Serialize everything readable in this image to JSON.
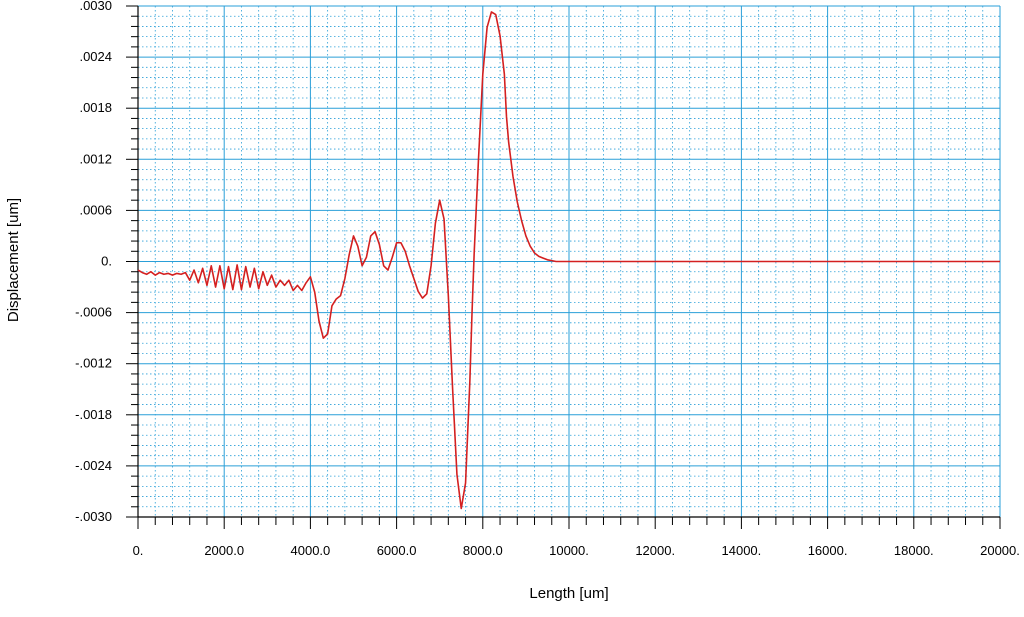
{
  "chart_data": {
    "type": "line",
    "title": "",
    "xlabel": "Length [um]",
    "ylabel": "Displacement [um]",
    "xlim": [
      0,
      20000
    ],
    "ylim": [
      -0.003,
      0.003
    ],
    "grid": true,
    "x_tick_values": [
      0,
      2000,
      4000,
      6000,
      8000,
      10000,
      12000,
      14000,
      16000,
      18000,
      20000
    ],
    "x_tick_labels": [
      "0.",
      "2000.0",
      "4000.0",
      "6000.0",
      "8000.0",
      "10000.",
      "12000.",
      "14000.",
      "16000.",
      "18000.",
      "20000."
    ],
    "y_tick_values": [
      0.003,
      0.0024,
      0.0018,
      0.0012,
      0.0006,
      0,
      -0.0006,
      -0.0012,
      -0.0018,
      -0.0024,
      -0.003
    ],
    "y_tick_labels": [
      ".0030",
      ".0024",
      ".0018",
      ".0012",
      ".0006",
      "0.",
      "-.0006",
      "-.0012",
      "-.0018",
      "-.0024",
      "-.0030"
    ],
    "colors": {
      "series": "#d42020",
      "grid_major": "#2a9fd8",
      "grid_minor": "#2a9fd8",
      "axis": "#000000"
    },
    "series": [
      {
        "x": [
          0,
          100,
          200,
          300,
          400,
          500,
          600,
          700,
          800,
          900,
          1000,
          1100,
          1200,
          1300,
          1400,
          1500,
          1600,
          1700,
          1800,
          1900,
          2000,
          2100,
          2200,
          2300,
          2400,
          2500,
          2600,
          2700,
          2800,
          2900,
          3000,
          3100,
          3200,
          3300,
          3400,
          3500,
          3600,
          3700,
          3800,
          3900,
          4000,
          4100,
          4200,
          4300,
          4400,
          4500,
          4600,
          4700,
          4800,
          4900,
          5000,
          5100,
          5200,
          5300,
          5400,
          5500,
          5600,
          5700,
          5800,
          5900,
          6000,
          6100,
          6200,
          6300,
          6400,
          6500,
          6600,
          6700,
          6800,
          6900,
          7000,
          7100,
          7200,
          7300,
          7400,
          7500,
          7600,
          7700,
          7750,
          7800,
          7900,
          8000,
          8100,
          8200,
          8300,
          8400,
          8500,
          8550,
          8600,
          8700,
          8800,
          8900,
          9000,
          9100,
          9200,
          9300,
          9400,
          9500,
          9600,
          9700,
          9800,
          9900,
          10000,
          10200,
          10500,
          11000,
          12000,
          14000,
          16000,
          18000,
          20000
        ],
        "y": [
          -0.0001,
          -0.00013,
          -0.00015,
          -0.00012,
          -0.00016,
          -0.00013,
          -0.00015,
          -0.00014,
          -0.00016,
          -0.00014,
          -0.00015,
          -0.00013,
          -0.00022,
          -0.0001,
          -0.00025,
          -8e-05,
          -0.00028,
          -5e-05,
          -0.0003,
          -5e-05,
          -0.00032,
          -6e-05,
          -0.00033,
          -4e-05,
          -0.00033,
          -6e-05,
          -0.0003,
          -8e-05,
          -0.00032,
          -0.00012,
          -0.00028,
          -0.00016,
          -0.0003,
          -0.00022,
          -0.00028,
          -0.00022,
          -0.00034,
          -0.00028,
          -0.00034,
          -0.00025,
          -0.00018,
          -0.00036,
          -0.0007,
          -0.0009,
          -0.00085,
          -0.00052,
          -0.00044,
          -0.0004,
          -0.0002,
          8e-05,
          0.0003,
          0.00018,
          -5e-05,
          5e-05,
          0.0003,
          0.00035,
          0.0002,
          -5e-05,
          -0.0001,
          5e-05,
          0.00022,
          0.00022,
          0.00012,
          -5e-05,
          -0.0002,
          -0.00035,
          -0.00043,
          -0.00038,
          -5e-05,
          0.00045,
          0.00072,
          0.0005,
          -0.0004,
          -0.0015,
          -0.0025,
          -0.0029,
          -0.0026,
          -0.0014,
          -0.0006,
          0.0001,
          0.0012,
          0.0022,
          0.00275,
          0.00293,
          0.0029,
          0.00265,
          0.0022,
          0.0017,
          0.0014,
          0.001,
          0.0007,
          0.00048,
          0.0003,
          0.00018,
          0.0001,
          6e-05,
          4e-05,
          2e-05,
          1e-05,
          0.0,
          0.0,
          0.0,
          0.0,
          0.0,
          0.0,
          0.0,
          0.0,
          0.0,
          0.0,
          0.0,
          0.0
        ]
      }
    ]
  }
}
